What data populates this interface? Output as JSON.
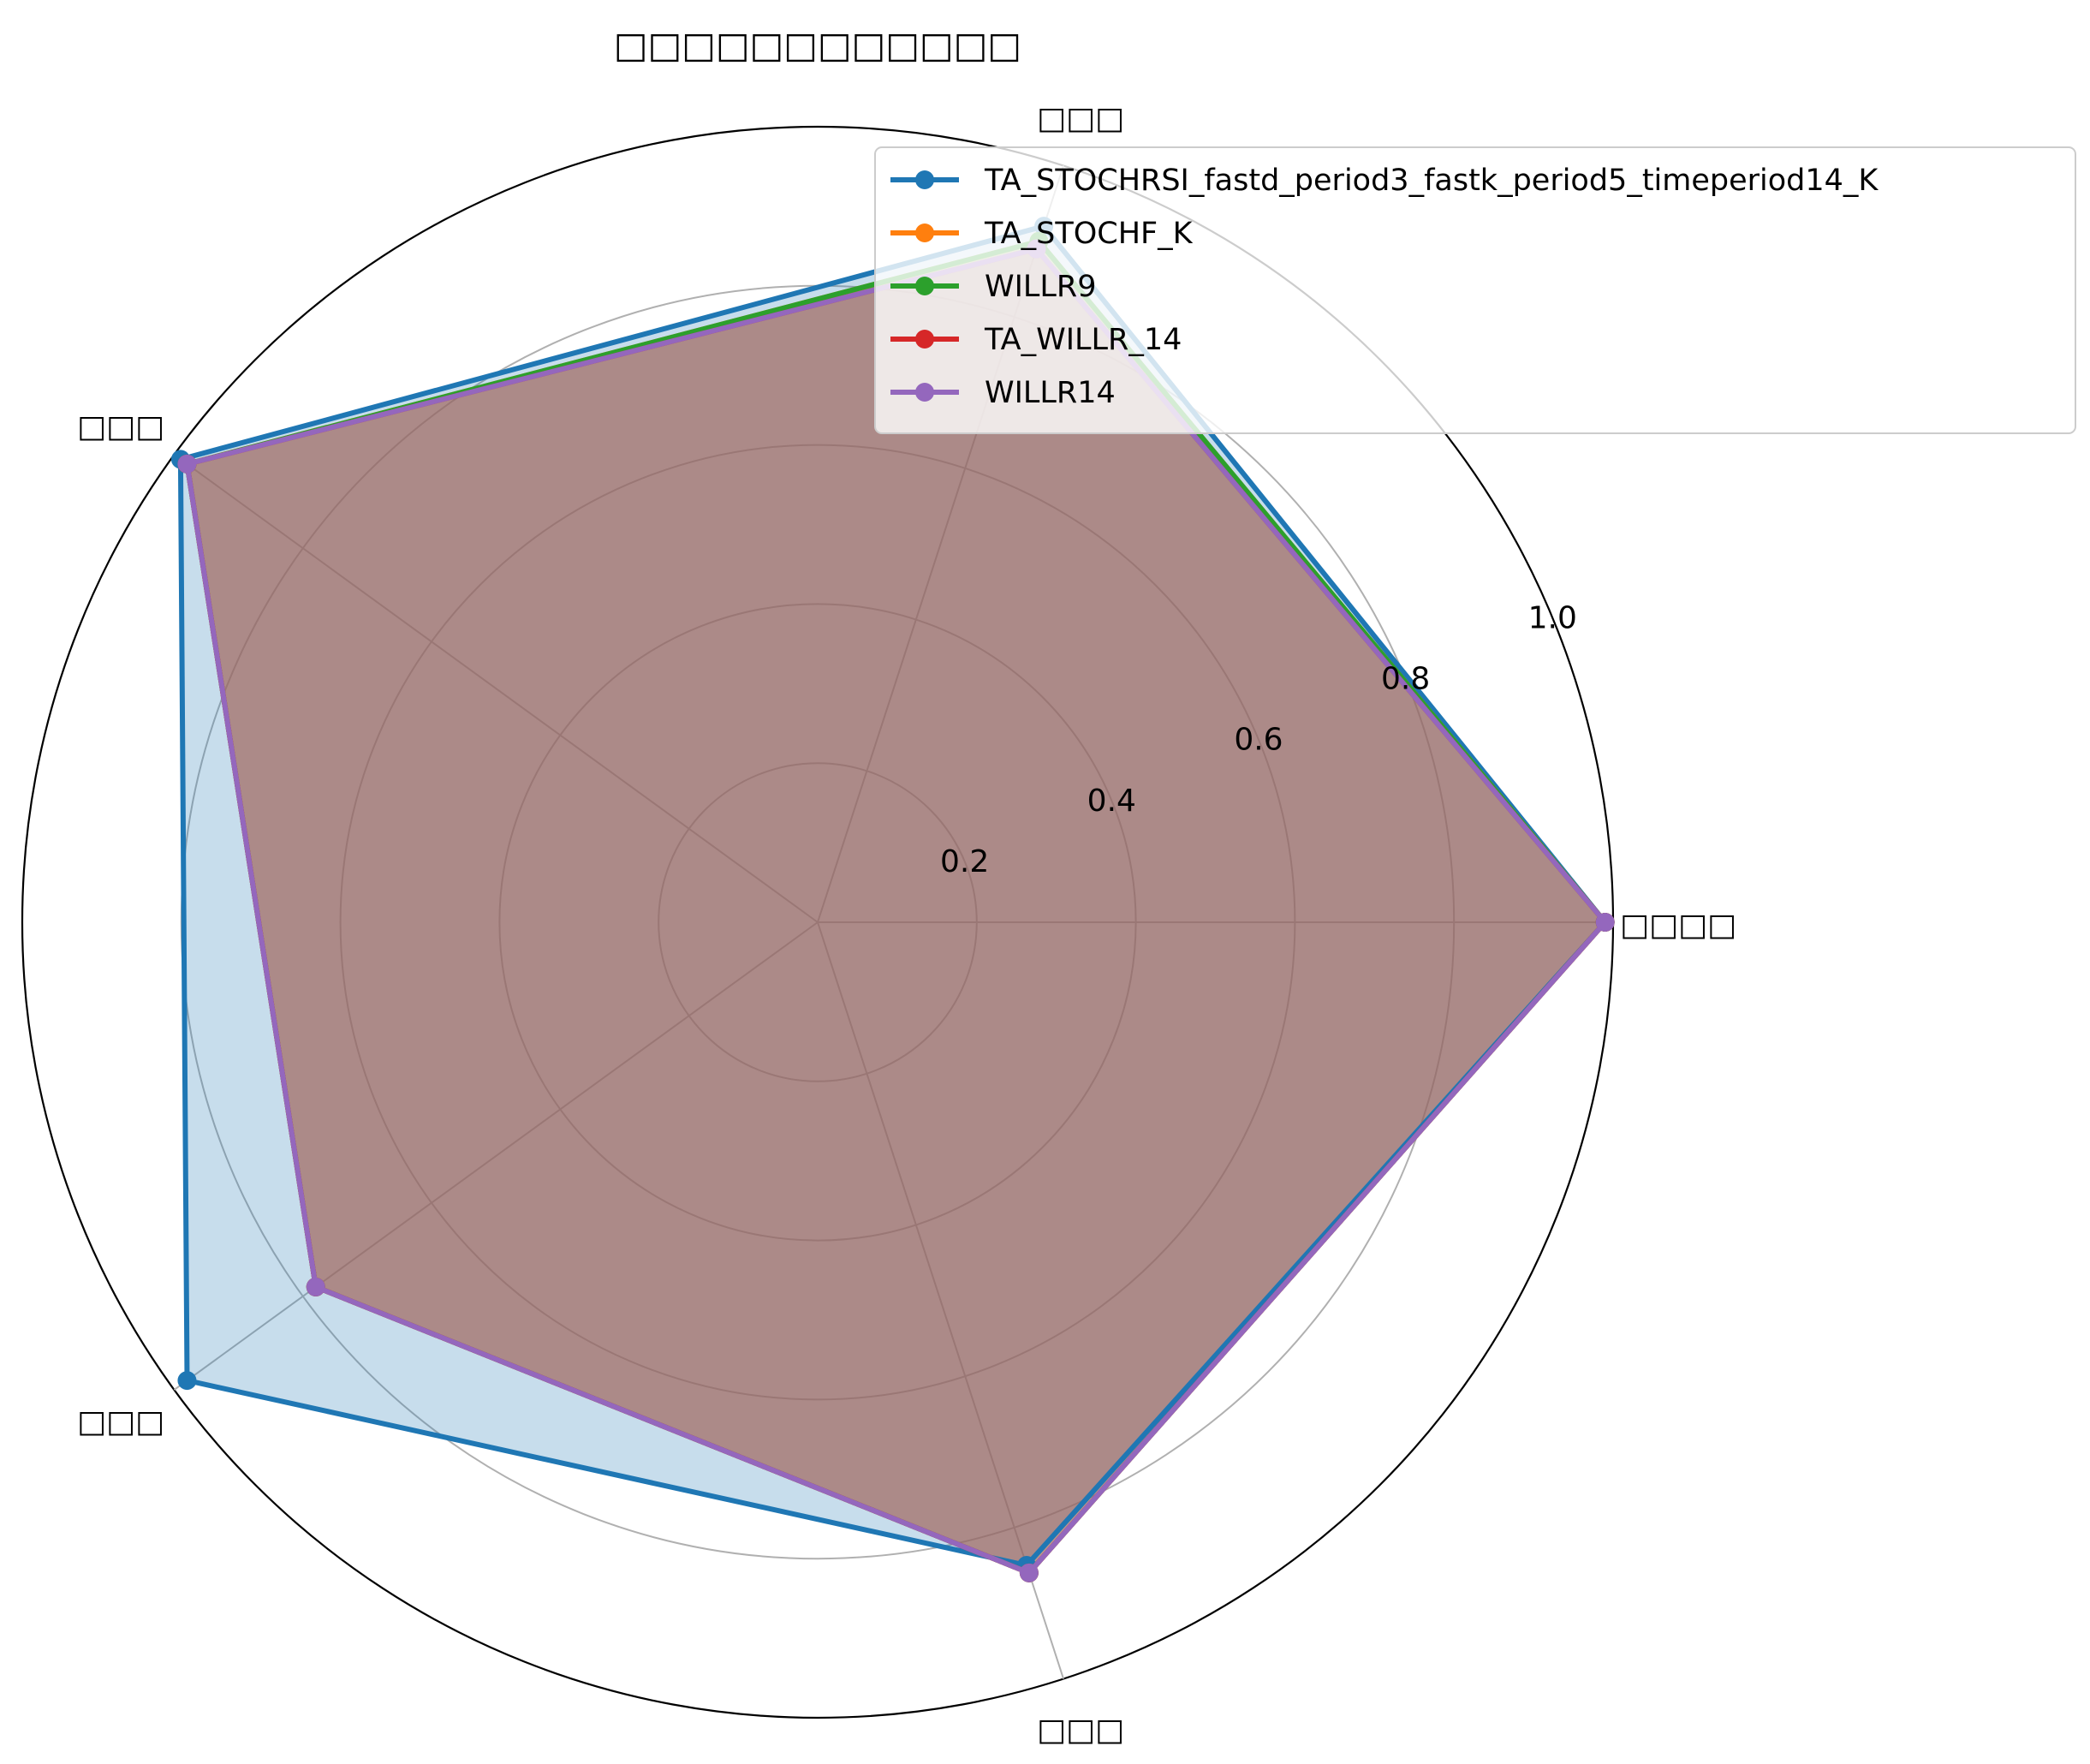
{
  "chart_data": {
    "type": "radar",
    "title": "□□□□□□□□□□□□",
    "axes": [
      "□□□□",
      "□□□",
      "□□□",
      "□□□",
      "□□□"
    ],
    "rlim": [
      0,
      1.0
    ],
    "r_ticks": [
      0.2,
      0.4,
      0.6,
      0.8,
      1.0
    ],
    "r_tick_labels": [
      "0.2",
      "0.4",
      "0.6",
      "0.8",
      "1.0"
    ],
    "grid": true,
    "legend_position": "upper-right",
    "series": [
      {
        "name": "TA_STOCHRSI_fastd_period3_fastk_period5_timeperiod14_K",
        "color": "#1f77b4",
        "values": [
          0.99,
          0.92,
          0.99,
          0.98,
          0.85
        ]
      },
      {
        "name": "TA_STOCHF_K",
        "color": "#ff7f0e",
        "values": [
          0.99,
          0.9,
          0.98,
          0.78,
          0.86
        ]
      },
      {
        "name": "WILLR9",
        "color": "#2ca02c",
        "values": [
          0.99,
          0.9,
          0.98,
          0.78,
          0.86
        ]
      },
      {
        "name": "TA_WILLR_14",
        "color": "#d62728",
        "values": [
          0.99,
          0.89,
          0.98,
          0.78,
          0.86
        ]
      },
      {
        "name": "WILLR14",
        "color": "#9467bd",
        "values": [
          0.99,
          0.89,
          0.98,
          0.78,
          0.86
        ]
      }
    ]
  }
}
